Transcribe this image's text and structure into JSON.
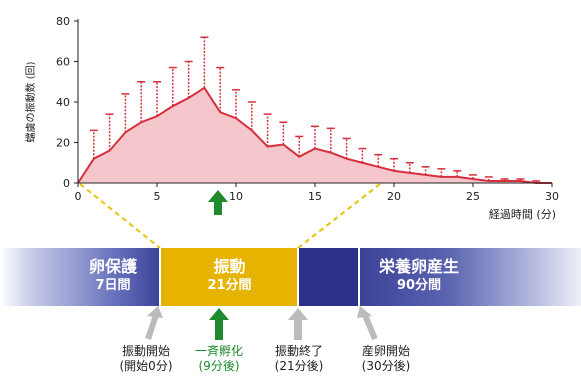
{
  "chart_data": {
    "type": "line",
    "ylabel": "蟷虜の振動数 (回)",
    "xlabel": "経過時間 (分)",
    "xlim": [
      0,
      30
    ],
    "ylim": [
      0,
      80
    ],
    "xticks": [
      "0",
      "5",
      "10",
      "15",
      "20",
      "25",
      "30"
    ],
    "yticks": [
      "0",
      "20",
      "40",
      "60",
      "80"
    ],
    "x": [
      0,
      1,
      2,
      3,
      4,
      5,
      6,
      7,
      8,
      9,
      10,
      11,
      12,
      13,
      14,
      15,
      16,
      17,
      18,
      19,
      20,
      21,
      22,
      23,
      24,
      25,
      26,
      27,
      28,
      29,
      30
    ],
    "series": [
      {
        "values": [
          0,
          12,
          16,
          25,
          30,
          33,
          38,
          42,
          47,
          35,
          32,
          26,
          18,
          19,
          13,
          17,
          15,
          12,
          10,
          8,
          6,
          5,
          4,
          3,
          3,
          2,
          1,
          1,
          1,
          0,
          0
        ],
        "error": [
          0,
          26,
          34,
          44,
          50,
          50,
          57,
          60,
          72,
          57,
          46,
          40,
          34,
          30,
          23,
          28,
          27,
          22,
          17,
          14,
          12,
          10,
          8,
          7,
          6,
          4,
          3,
          2,
          2,
          1,
          0
        ]
      }
    ],
    "colors": {
      "line": "#d6303f",
      "fill": "#f5c6cc",
      "arrow": "#1f8a2e"
    }
  },
  "timeline": {
    "egg_title": "卵保護",
    "egg_sub": "7日間",
    "shake_title": "振動",
    "shake_sub": "21分間",
    "nutri_title": "栄養卵産生",
    "nutri_sub": "90分間",
    "colors": {
      "shake": "#e5b300",
      "dark": "#2b318a"
    }
  },
  "events": [
    {
      "label": "振動開始",
      "sub": "(開始0分)"
    },
    {
      "label": "一斉孵化",
      "sub": "(9分後)"
    },
    {
      "label": "振動終了",
      "sub": "(21分後)"
    },
    {
      "label": "産卵開始",
      "sub": "(30分後)"
    }
  ]
}
